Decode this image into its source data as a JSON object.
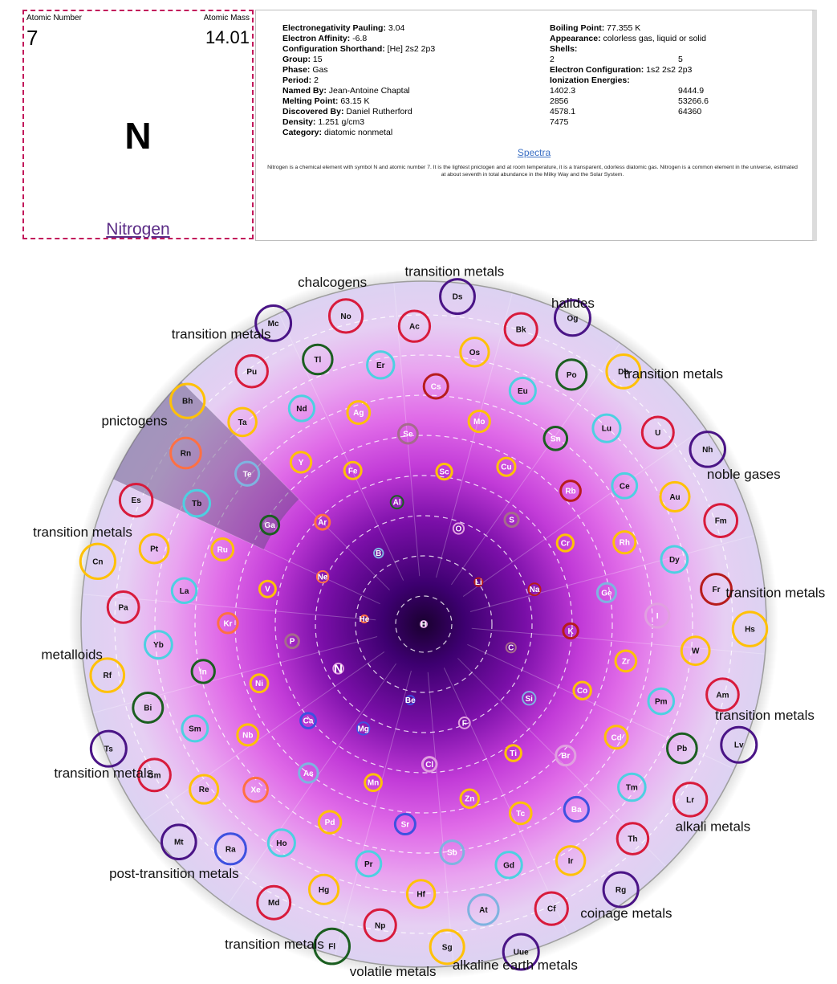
{
  "element": {
    "atomic_number_label": "Atomic Number",
    "atomic_mass_label": "Atomic Mass",
    "atomic_number": "7",
    "atomic_mass": "14.01",
    "symbol": "N",
    "name": "Nitrogen"
  },
  "details": {
    "left_rows": [
      {
        "label": "Electronegativity Pauling:",
        "value": "3.04"
      },
      {
        "label": "Electron Affinity:",
        "value": "-6.8"
      },
      {
        "label": "Configuration Shorthand:",
        "value": "[He] 2s2 2p3"
      },
      {
        "label": "Group:",
        "value": "15"
      },
      {
        "label": "Phase:",
        "value": "Gas"
      },
      {
        "label": "Period:",
        "value": "2"
      },
      {
        "label": "Named By:",
        "value": "Jean-Antoine Chaptal"
      },
      {
        "label": "Melting Point:",
        "value": "63.15 K"
      },
      {
        "label": "Discovered By:",
        "value": "Daniel Rutherford"
      },
      {
        "label": "Density:",
        "value": "1.251 g/cm3"
      },
      {
        "label": "Category:",
        "value": "diatomic nonmetal"
      }
    ],
    "boiling": {
      "label": "Boiling Point:",
      "value": "77.355 K"
    },
    "appearance": {
      "label": "Appearance:",
      "value": "colorless gas, liquid or solid"
    },
    "shells_label": "Shells:",
    "shells": [
      "2",
      "5"
    ],
    "config": {
      "label": "Electron Configuration:",
      "value": "1s2 2s2 2p3"
    },
    "ionization_label": "Ionization Energies:",
    "ionization": [
      [
        "1402.3",
        "9444.9"
      ],
      [
        "2856",
        "53266.6"
      ],
      [
        "4578.1",
        "64360"
      ],
      [
        "7475",
        ""
      ]
    ],
    "spectra_link": "Spectra",
    "summary": "Nitrogen is a chemical element with symbol N and atomic number 7. It is the lightest pnictogen and at room temperature, it is a transparent, odorless diatomic gas. Nitrogen is a common element in the universe, estimated at about seventh in total abundance in the Milky Way and the Solar System."
  },
  "wheel": {
    "selected_group": "pnictogens",
    "category_colors": {
      "transition metals": "#ffc107",
      "lanthanides": "#4dd0e1",
      "actinides": "#d81b3c",
      "alkali metals": "#b71c1c",
      "alkaline earth metals": "#3f51e0",
      "post-transition metals": "#1b5e20",
      "metalloids": "#7fb3e0",
      "polyatomic nonmetal": "#a56b8c",
      "diatomic nonmetal": "#e0a0e0",
      "noble gases": "#ff7043",
      "unknown": "#4a1486"
    },
    "group_labels": [
      "transition metals",
      "halides",
      "transition metals",
      "noble gases",
      "transition metals",
      "transition metals",
      "alkali metals",
      "coinage metals",
      "alkaline earth metals",
      "volatile metals",
      "transition metals",
      "post-transition metals",
      "transition metals",
      "metalloids",
      "transition metals",
      "pnictogens",
      "transition metals",
      "chalcogens"
    ],
    "elements": [
      {
        "s": "H",
        "c": "diatomic nonmetal"
      },
      {
        "s": "He",
        "c": "noble gases"
      },
      {
        "s": "Li",
        "c": "alkali metals"
      },
      {
        "s": "Be",
        "c": "alkaline earth metals"
      },
      {
        "s": "B",
        "c": "metalloids"
      },
      {
        "s": "C",
        "c": "polyatomic nonmetal"
      },
      {
        "s": "N",
        "c": "diatomic nonmetal"
      },
      {
        "s": "O",
        "c": "diatomic nonmetal"
      },
      {
        "s": "F",
        "c": "diatomic nonmetal"
      },
      {
        "s": "Ne",
        "c": "noble gases"
      },
      {
        "s": "Na",
        "c": "alkali metals"
      },
      {
        "s": "Mg",
        "c": "alkaline earth metals"
      },
      {
        "s": "Al",
        "c": "post-transition metals"
      },
      {
        "s": "Si",
        "c": "metalloids"
      },
      {
        "s": "P",
        "c": "polyatomic nonmetal"
      },
      {
        "s": "S",
        "c": "polyatomic nonmetal"
      },
      {
        "s": "Cl",
        "c": "diatomic nonmetal"
      },
      {
        "s": "Ar",
        "c": "noble gases"
      },
      {
        "s": "K",
        "c": "alkali metals"
      },
      {
        "s": "Ca",
        "c": "alkaline earth metals"
      },
      {
        "s": "Sc",
        "c": "transition metals"
      },
      {
        "s": "Ti",
        "c": "transition metals"
      },
      {
        "s": "V",
        "c": "transition metals"
      },
      {
        "s": "Cr",
        "c": "transition metals"
      },
      {
        "s": "Mn",
        "c": "transition metals"
      },
      {
        "s": "Fe",
        "c": "transition metals"
      },
      {
        "s": "Co",
        "c": "transition metals"
      },
      {
        "s": "Ni",
        "c": "transition metals"
      },
      {
        "s": "Cu",
        "c": "transition metals"
      },
      {
        "s": "Zn",
        "c": "transition metals"
      },
      {
        "s": "Ga",
        "c": "post-transition metals"
      },
      {
        "s": "Ge",
        "c": "metalloids"
      },
      {
        "s": "As",
        "c": "metalloids"
      },
      {
        "s": "Se",
        "c": "polyatomic nonmetal"
      },
      {
        "s": "Br",
        "c": "diatomic nonmetal"
      },
      {
        "s": "Kr",
        "c": "noble gases"
      },
      {
        "s": "Rb",
        "c": "alkali metals"
      },
      {
        "s": "Sr",
        "c": "alkaline earth metals"
      },
      {
        "s": "Y",
        "c": "transition metals"
      },
      {
        "s": "Zr",
        "c": "transition metals"
      },
      {
        "s": "Nb",
        "c": "transition metals"
      },
      {
        "s": "Mo",
        "c": "transition metals"
      },
      {
        "s": "Tc",
        "c": "transition metals"
      },
      {
        "s": "Ru",
        "c": "transition metals"
      },
      {
        "s": "Rh",
        "c": "transition metals"
      },
      {
        "s": "Pd",
        "c": "transition metals"
      },
      {
        "s": "Ag",
        "c": "transition metals"
      },
      {
        "s": "Cd",
        "c": "transition metals"
      },
      {
        "s": "In",
        "c": "post-transition metals"
      },
      {
        "s": "Sn",
        "c": "post-transition metals"
      },
      {
        "s": "Sb",
        "c": "metalloids"
      },
      {
        "s": "Te",
        "c": "metalloids"
      },
      {
        "s": "I",
        "c": "diatomic nonmetal"
      },
      {
        "s": "Xe",
        "c": "noble gases"
      },
      {
        "s": "Cs",
        "c": "alkali metals"
      },
      {
        "s": "Ba",
        "c": "alkaline earth metals"
      },
      {
        "s": "La",
        "c": "lanthanides"
      },
      {
        "s": "Ce",
        "c": "lanthanides"
      },
      {
        "s": "Pr",
        "c": "lanthanides"
      },
      {
        "s": "Nd",
        "c": "lanthanides"
      },
      {
        "s": "Pm",
        "c": "lanthanides"
      },
      {
        "s": "Sm",
        "c": "lanthanides"
      },
      {
        "s": "Eu",
        "c": "lanthanides"
      },
      {
        "s": "Gd",
        "c": "lanthanides"
      },
      {
        "s": "Tb",
        "c": "lanthanides"
      },
      {
        "s": "Dy",
        "c": "lanthanides"
      },
      {
        "s": "Ho",
        "c": "lanthanides"
      },
      {
        "s": "Er",
        "c": "lanthanides"
      },
      {
        "s": "Tm",
        "c": "lanthanides"
      },
      {
        "s": "Yb",
        "c": "lanthanides"
      },
      {
        "s": "Lu",
        "c": "lanthanides"
      },
      {
        "s": "Hf",
        "c": "transition metals"
      },
      {
        "s": "Ta",
        "c": "transition metals"
      },
      {
        "s": "W",
        "c": "transition metals"
      },
      {
        "s": "Re",
        "c": "transition metals"
      },
      {
        "s": "Os",
        "c": "transition metals"
      },
      {
        "s": "Ir",
        "c": "transition metals"
      },
      {
        "s": "Pt",
        "c": "transition metals"
      },
      {
        "s": "Au",
        "c": "transition metals"
      },
      {
        "s": "Hg",
        "c": "transition metals"
      },
      {
        "s": "Tl",
        "c": "post-transition metals"
      },
      {
        "s": "Pb",
        "c": "post-transition metals"
      },
      {
        "s": "Bi",
        "c": "post-transition metals"
      },
      {
        "s": "Po",
        "c": "post-transition metals"
      },
      {
        "s": "At",
        "c": "metalloids"
      },
      {
        "s": "Rn",
        "c": "noble gases"
      },
      {
        "s": "Fr",
        "c": "alkali metals"
      },
      {
        "s": "Ra",
        "c": "alkaline earth metals"
      },
      {
        "s": "Ac",
        "c": "actinides"
      },
      {
        "s": "Th",
        "c": "actinides"
      },
      {
        "s": "Pa",
        "c": "actinides"
      },
      {
        "s": "U",
        "c": "actinides"
      },
      {
        "s": "Np",
        "c": "actinides"
      },
      {
        "s": "Pu",
        "c": "actinides"
      },
      {
        "s": "Am",
        "c": "actinides"
      },
      {
        "s": "Cm",
        "c": "actinides"
      },
      {
        "s": "Bk",
        "c": "actinides"
      },
      {
        "s": "Cf",
        "c": "actinides"
      },
      {
        "s": "Es",
        "c": "actinides"
      },
      {
        "s": "Fm",
        "c": "actinides"
      },
      {
        "s": "Md",
        "c": "actinides"
      },
      {
        "s": "No",
        "c": "actinides"
      },
      {
        "s": "Lr",
        "c": "actinides"
      },
      {
        "s": "Rf",
        "c": "transition metals"
      },
      {
        "s": "Db",
        "c": "transition metals"
      },
      {
        "s": "Sg",
        "c": "transition metals"
      },
      {
        "s": "Bh",
        "c": "transition metals"
      },
      {
        "s": "Hs",
        "c": "transition metals"
      },
      {
        "s": "Mt",
        "c": "unknown"
      },
      {
        "s": "Ds",
        "c": "unknown"
      },
      {
        "s": "Rg",
        "c": "unknown"
      },
      {
        "s": "Cn",
        "c": "transition metals"
      },
      {
        "s": "Nh",
        "c": "unknown"
      },
      {
        "s": "Fl",
        "c": "post-transition metals"
      },
      {
        "s": "Mc",
        "c": "unknown"
      },
      {
        "s": "Lv",
        "c": "unknown"
      },
      {
        "s": "Ts",
        "c": "unknown"
      },
      {
        "s": "Og",
        "c": "unknown"
      },
      {
        "s": "Uue",
        "c": "unknown"
      }
    ]
  }
}
